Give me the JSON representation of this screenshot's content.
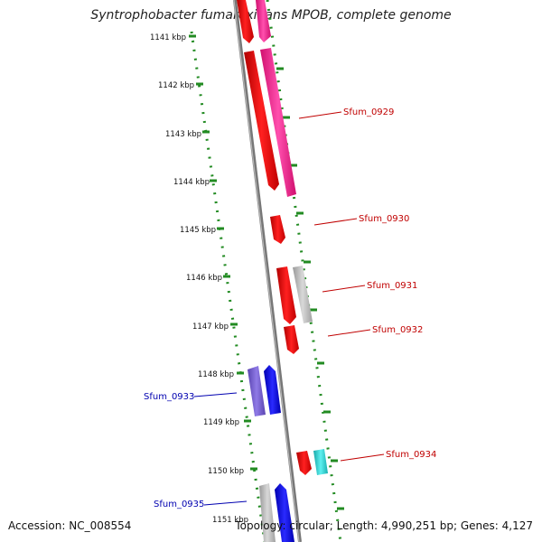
{
  "title": "Syntrophobacter fumaroxidans MPOB, complete genome",
  "accession": "Accession: NC_008554",
  "summary": "Topology: circular; Length: 4,990,251 bp; Genes: 4,127",
  "ruler_labels": [
    "1141 kbp",
    "1142 kbp",
    "1143 kbp",
    "1144 kbp",
    "1145 kbp",
    "1146 kbp",
    "1147 kbp",
    "1148 kbp",
    "1149 kbp",
    "1150 kbp",
    "1151 kbp"
  ],
  "gene_labels": [
    {
      "text": "Sfum_0929",
      "color": "#c00000"
    },
    {
      "text": "Sfum_0930",
      "color": "#c00000"
    },
    {
      "text": "Sfum_0931",
      "color": "#c00000"
    },
    {
      "text": "Sfum_0932",
      "color": "#c00000"
    },
    {
      "text": "Sfum_0933",
      "color": "#0000b0"
    },
    {
      "text": "Sfum_0934",
      "color": "#c00000"
    },
    {
      "text": "Sfum_0935",
      "color": "#0000b0"
    }
  ],
  "colors": {
    "forward_strand": "#ff1a1a",
    "forward_pink": "#ff3399",
    "reverse_strand": "#0000ff",
    "reverse_purple": "#7a5cd6",
    "gray_gene": "#bbbbbb",
    "cyan_gene": "#22cccc",
    "backbone": "#808080",
    "ruler": "#228b22"
  }
}
